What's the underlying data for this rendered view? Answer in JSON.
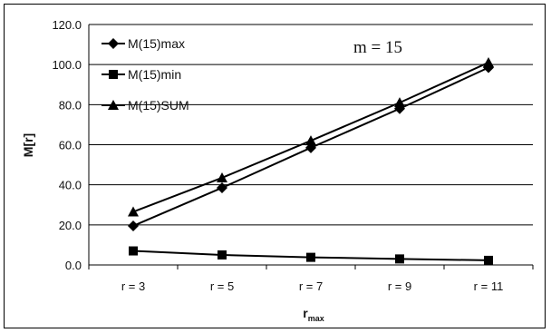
{
  "chart_data": {
    "type": "line",
    "title": "",
    "annotation": "m = 15",
    "xlabel": {
      "base": "r",
      "sub": "max"
    },
    "ylabel": "M[r]",
    "categories": [
      "r = 3",
      "r = 5",
      "r = 7",
      "r = 9",
      "r = 11"
    ],
    "ylim": [
      0,
      120
    ],
    "yticks": [
      "0.0",
      "20.0",
      "40.0",
      "60.0",
      "80.0",
      "100.0",
      "120.0"
    ],
    "grid": "horizontal",
    "legend_position": "top-left",
    "series": [
      {
        "name": "M(15)max",
        "marker": "diamond",
        "values": [
          19.5,
          38.5,
          58.5,
          78.0,
          98.5
        ]
      },
      {
        "name": "M(15)min",
        "marker": "square",
        "values": [
          7.0,
          5.0,
          3.8,
          3.0,
          2.3
        ]
      },
      {
        "name": "M(15)SUM",
        "marker": "triangle",
        "values": [
          26.5,
          43.5,
          62.0,
          81.0,
          101.0
        ]
      }
    ],
    "colors": {
      "line": "#000000",
      "grid": "#000000"
    }
  }
}
